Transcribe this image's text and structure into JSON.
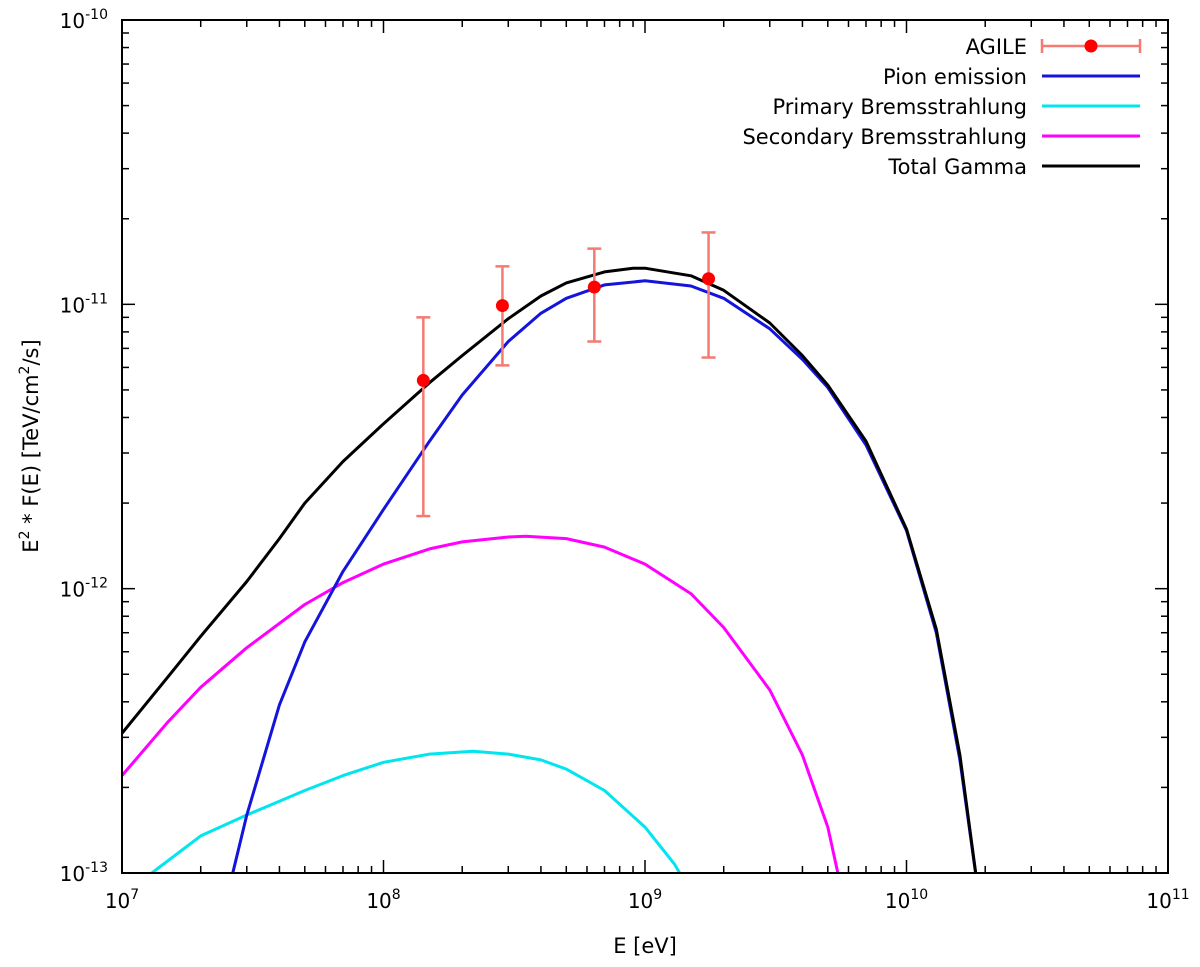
{
  "chart_data": {
    "type": "line",
    "title": "",
    "xlabel": "E [eV]",
    "ylabel_parts": [
      "E",
      "2",
      " * F(E) [TeV/cm",
      "2",
      "/s]"
    ],
    "xscale": "log",
    "yscale": "log",
    "xlim": [
      10000000.0,
      100000000000.0
    ],
    "ylim": [
      1e-13,
      1e-10
    ],
    "x_tick_labels": [
      {
        "base": "10",
        "exp": "7"
      },
      {
        "base": "10",
        "exp": "8"
      },
      {
        "base": "10",
        "exp": "9"
      },
      {
        "base": "10",
        "exp": "10"
      },
      {
        "base": "10",
        "exp": "11"
      }
    ],
    "y_tick_labels": [
      {
        "base": "10",
        "exp": "-13"
      },
      {
        "base": "10",
        "exp": "-12"
      },
      {
        "base": "10",
        "exp": "-11"
      },
      {
        "base": "10",
        "exp": "-10"
      }
    ],
    "legend_position": "top-right",
    "grid": false,
    "series": [
      {
        "name": "AGILE",
        "kind": "points-errorbars",
        "color": "#ff0000",
        "errorbar_color": "#f47a72",
        "points": [
          {
            "x": 142000000.0,
            "y": 5.4e-12,
            "ylow": 1.8e-12,
            "yhigh": 9e-12
          },
          {
            "x": 285000000.0,
            "y": 9.9e-12,
            "ylow": 6.1e-12,
            "yhigh": 1.36e-11
          },
          {
            "x": 640000000.0,
            "y": 1.15e-11,
            "ylow": 7.4e-12,
            "yhigh": 1.57e-11
          },
          {
            "x": 1750000000.0,
            "y": 1.23e-11,
            "ylow": 6.5e-12,
            "yhigh": 1.79e-11
          }
        ]
      },
      {
        "name": "Pion emission",
        "kind": "line",
        "color": "#1414dc",
        "x": [
          25000000.0,
          30000000.0,
          40000000.0,
          50000000.0,
          70000000.0,
          100000000.0,
          150000000.0,
          200000000.0,
          300000000.0,
          400000000.0,
          500000000.0,
          700000000.0,
          1000000000.0,
          1500000000.0,
          2000000000.0,
          3000000000.0,
          4000000000.0,
          5000000000.0,
          7000000000.0,
          10000000000.0,
          13000000000.0,
          16000000000.0,
          19000000000.0
        ],
        "y": [
          8e-14,
          1.6e-13,
          3.9e-13,
          6.5e-13,
          1.15e-12,
          1.9e-12,
          3.3e-12,
          4.8e-12,
          7.4e-12,
          9.3e-12,
          1.05e-11,
          1.17e-11,
          1.21e-11,
          1.16e-11,
          1.05e-11,
          8.2e-12,
          6.4e-12,
          5.1e-12,
          3.2e-12,
          1.6e-12,
          7e-13,
          2.5e-13,
          8e-14
        ]
      },
      {
        "name": "Primary Bremsstrahlung",
        "kind": "line",
        "color": "#00e5ee",
        "x": [
          13000000.0,
          20000000.0,
          30000000.0,
          50000000.0,
          70000000.0,
          100000000.0,
          150000000.0,
          220000000.0,
          300000000.0,
          400000000.0,
          500000000.0,
          700000000.0,
          1000000000.0,
          1300000000.0,
          1450000000.0
        ],
        "y": [
          1e-13,
          1.35e-13,
          1.6e-13,
          1.95e-13,
          2.2e-13,
          2.45e-13,
          2.62e-13,
          2.68e-13,
          2.62e-13,
          2.5e-13,
          2.32e-13,
          1.95e-13,
          1.45e-13,
          1.07e-13,
          9e-14
        ]
      },
      {
        "name": "Secondary Bremsstrahlung",
        "kind": "line",
        "color": "#ff00ff",
        "x": [
          10000000.0,
          15000000.0,
          20000000.0,
          30000000.0,
          50000000.0,
          70000000.0,
          100000000.0,
          150000000.0,
          200000000.0,
          300000000.0,
          350000000.0,
          500000000.0,
          700000000.0,
          1000000000.0,
          1500000000.0,
          2000000000.0,
          3000000000.0,
          4000000000.0,
          5000000000.0,
          5600000000.0
        ],
        "y": [
          2.2e-13,
          3.4e-13,
          4.5e-13,
          6.2e-13,
          8.8e-13,
          1.05e-12,
          1.22e-12,
          1.38e-12,
          1.46e-12,
          1.52e-12,
          1.53e-12,
          1.5e-12,
          1.4e-12,
          1.22e-12,
          9.6e-13,
          7.3e-13,
          4.4e-13,
          2.6e-13,
          1.45e-13,
          9e-14
        ]
      },
      {
        "name": "Total Gamma",
        "kind": "line",
        "color": "#000000",
        "x": [
          10000000.0,
          15000000.0,
          20000000.0,
          30000000.0,
          40000000.0,
          50000000.0,
          70000000.0,
          100000000.0,
          150000000.0,
          200000000.0,
          300000000.0,
          400000000.0,
          500000000.0,
          700000000.0,
          900000000.0,
          1000000000.0,
          1500000000.0,
          2000000000.0,
          3000000000.0,
          4000000000.0,
          5000000000.0,
          7000000000.0,
          10000000000.0,
          13000000000.0,
          16000000000.0,
          19000000000.0
        ],
        "y": [
          3.1e-13,
          4.9e-13,
          6.8e-13,
          1.06e-12,
          1.5e-12,
          2e-12,
          2.8e-12,
          3.8e-12,
          5.3e-12,
          6.6e-12,
          8.9e-12,
          1.07e-11,
          1.19e-11,
          1.3e-11,
          1.34e-11,
          1.34e-11,
          1.26e-11,
          1.12e-11,
          8.6e-12,
          6.6e-12,
          5.2e-12,
          3.3e-12,
          1.62e-12,
          7.2e-13,
          2.6e-13,
          8e-14
        ]
      }
    ]
  }
}
